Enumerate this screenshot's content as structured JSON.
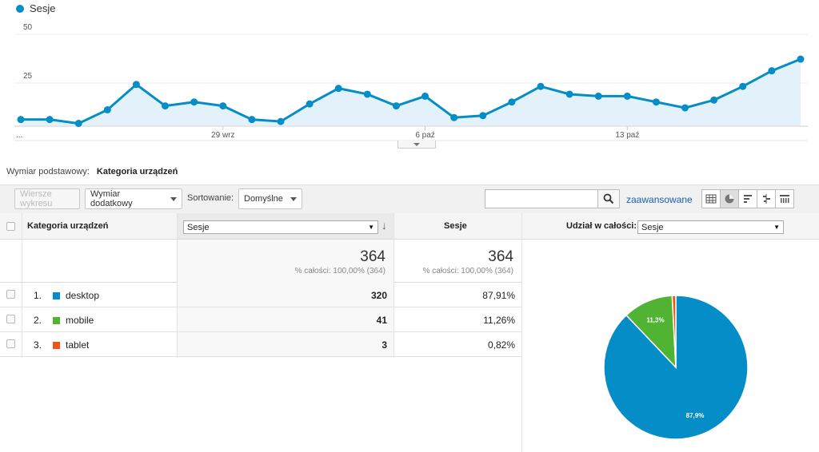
{
  "legend": {
    "series_label": "Sesje",
    "color": "#058dc7"
  },
  "chart_data": {
    "type": "area",
    "series": [
      {
        "name": "Sesje",
        "values": [
          3,
          3,
          1,
          8,
          21,
          10,
          12,
          10,
          3,
          2,
          11,
          19,
          16,
          10,
          15,
          4,
          5,
          12,
          20,
          16,
          15,
          15,
          12,
          9,
          13,
          20,
          28,
          34
        ]
      }
    ],
    "y_ticks": [
      "50",
      "25"
    ],
    "ylim": [
      0,
      50
    ],
    "x_ticks": [
      {
        "index": 0,
        "label": "..."
      },
      {
        "index": 7,
        "label": "29 wrz"
      },
      {
        "index": 14,
        "label": "6 paź"
      },
      {
        "index": 21,
        "label": "13 paź"
      }
    ],
    "grid": true
  },
  "primary_dimension": {
    "label": "Wymiar podstawowy:",
    "value": "Kategoria urządzeń"
  },
  "toolbar": {
    "plot_rows": "Wiersze wykresu",
    "secondary_dimension": "Wymiar dodatkowy",
    "sort_label": "Sortowanie:",
    "sort_value": "Domyślne",
    "search_placeholder": "",
    "advanced": "zaawansowane"
  },
  "table": {
    "dimension_header": "Kategoria urządzeń",
    "metric_select": "Sesje",
    "metric_header": "Sesje",
    "share_label": "Udział w całości:",
    "share_select": "Sesje",
    "totals": {
      "value1": "364",
      "sub1": "% całości: 100,00% (364)",
      "value2": "364",
      "sub2": "% całości: 100,00% (364)"
    },
    "rows": [
      {
        "index": "1.",
        "name": "desktop",
        "color": "#058dc7",
        "sessions": "320",
        "percent": "87,91%"
      },
      {
        "index": "2.",
        "name": "mobile",
        "color": "#50b432",
        "sessions": "41",
        "percent": "11,26%"
      },
      {
        "index": "3.",
        "name": "tablet",
        "color": "#ed561b",
        "sessions": "3",
        "percent": "0,82%"
      }
    ]
  },
  "pie": {
    "slices": [
      {
        "name": "desktop",
        "value": 87.91,
        "color": "#058dc7",
        "label": "87,9%"
      },
      {
        "name": "mobile",
        "value": 11.26,
        "color": "#50b432",
        "label": "11,3%"
      },
      {
        "name": "tablet",
        "value": 0.82,
        "color": "#ed561b",
        "label": ""
      }
    ]
  }
}
